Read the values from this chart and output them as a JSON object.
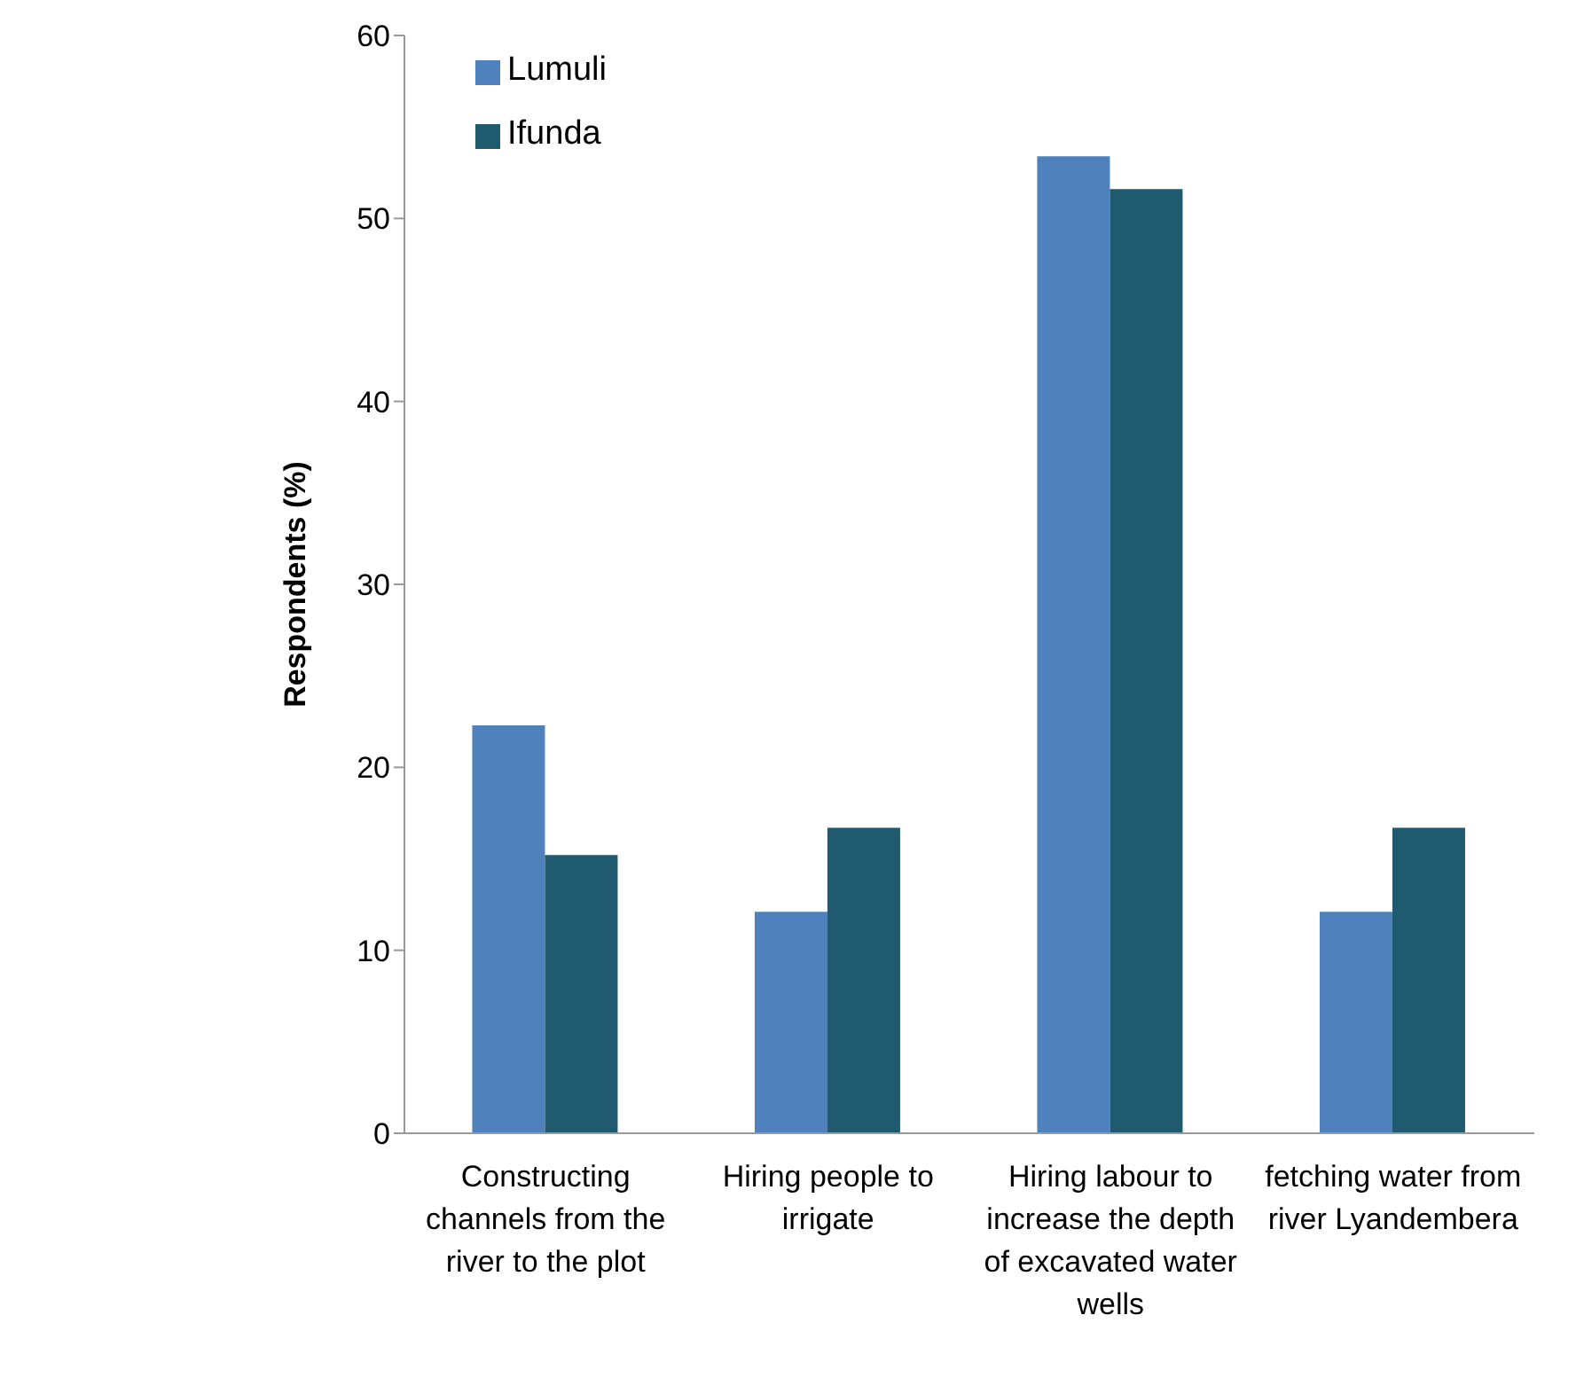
{
  "chart_data": {
    "type": "bar",
    "ylabel": "Respondents (%)",
    "categories": [
      "Constructing channels from the river to the plot",
      "Hiring people to irrigate",
      "Hiring labour to increase the depth of excavated water wells",
      "fetching water from  river Lyandembera"
    ],
    "series": [
      {
        "name": "Lumuli",
        "color": "#4f81bd",
        "values": [
          22.3,
          12.1,
          53.4,
          12.1
        ]
      },
      {
        "name": "Ifunda",
        "color": "#1f5a6e",
        "values": [
          15.2,
          16.7,
          51.6,
          16.7
        ]
      }
    ],
    "ylim": [
      0,
      60
    ],
    "yticks": [
      0,
      10,
      20,
      30,
      40,
      50,
      60
    ],
    "grid": false,
    "legend": "top left"
  }
}
